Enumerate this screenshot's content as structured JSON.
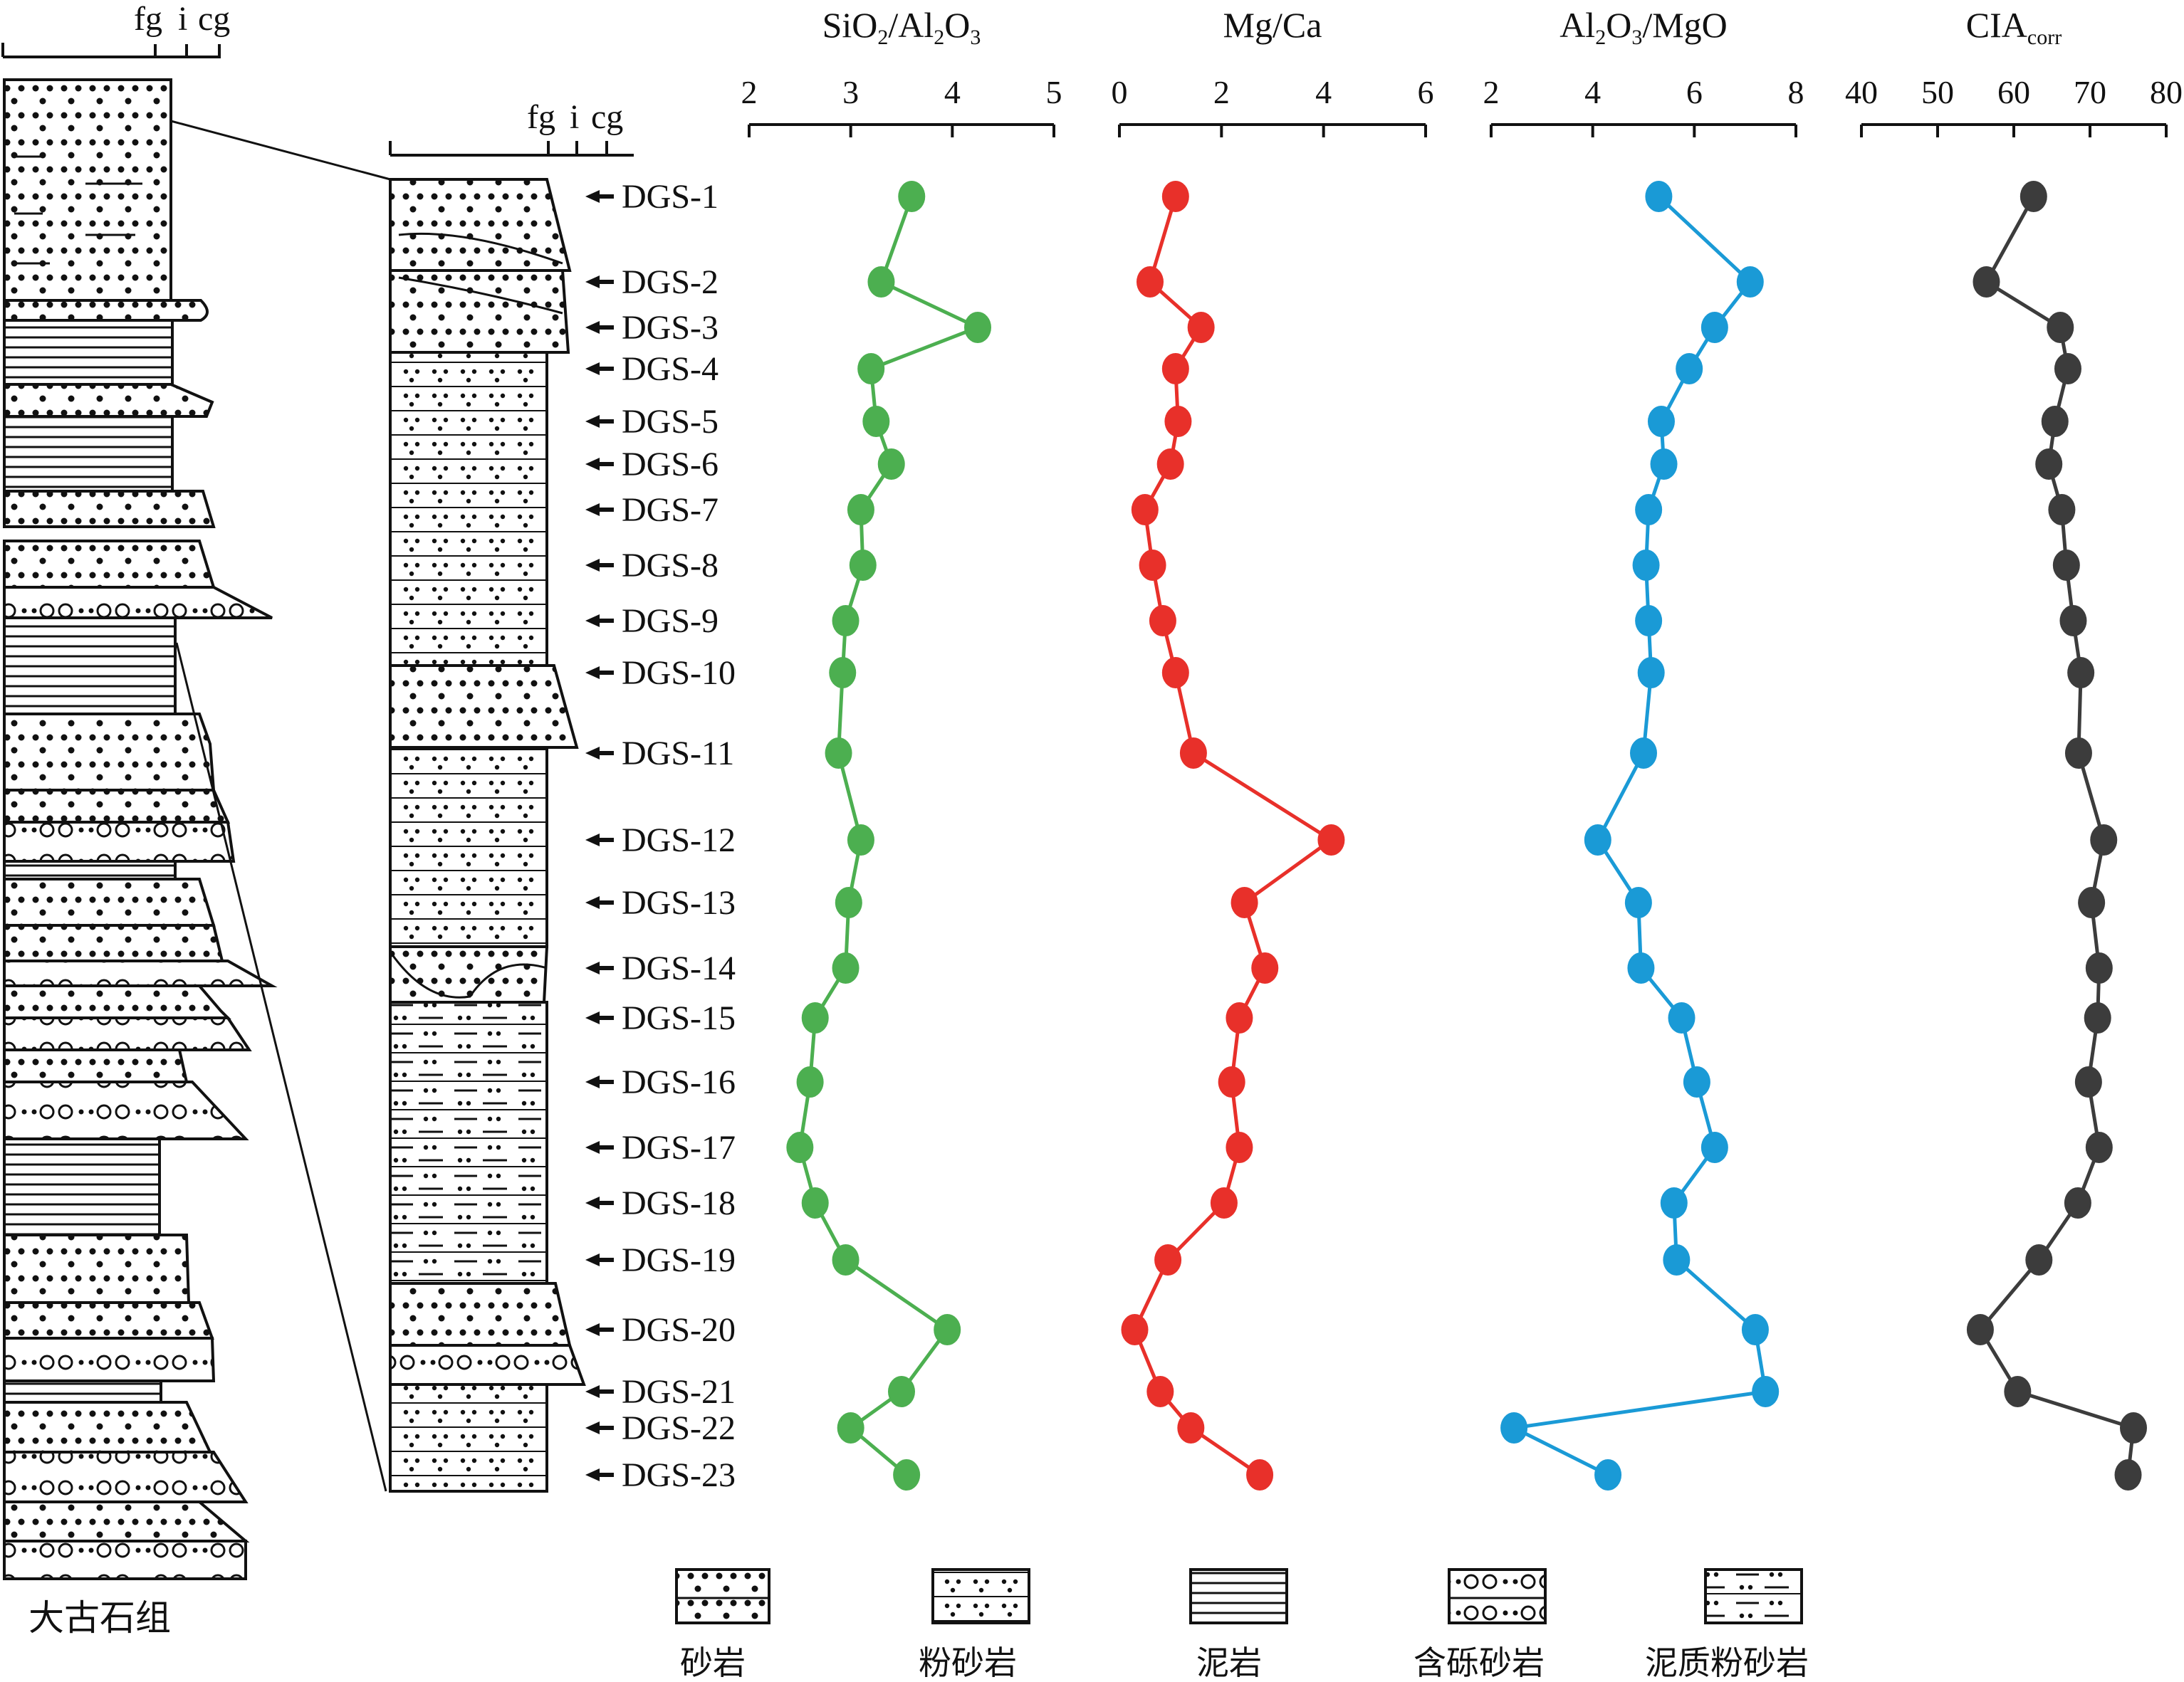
{
  "formation_name": "大古石组",
  "grain_scale": {
    "fg": "fg",
    "i": "i",
    "cg": "cg"
  },
  "legend": [
    "砂岩",
    "粉砂岩",
    "泥岩",
    "含砾砂岩",
    "泥质粉砂岩"
  ],
  "samples": [
    "DGS-1",
    "DGS-2",
    "DGS-3",
    "DGS-4",
    "DGS-5",
    "DGS-6",
    "DGS-7",
    "DGS-8",
    "DGS-9",
    "DGS-10",
    "DGS-11",
    "DGS-12",
    "DGS-13",
    "DGS-14",
    "DGS-15",
    "DGS-16",
    "DGS-17",
    "DGS-18",
    "DGS-19",
    "DGS-20",
    "DGS-21",
    "DGS-22",
    "DGS-23"
  ],
  "colors": {
    "SiO2/Al2O3": "#4caf50",
    "Mg/Ca": "#e8302a",
    "Al2O3/MgO": "#1a9ad6",
    "CIAcorr": "#3c3c3c"
  },
  "chart_data": [
    {
      "type": "line",
      "title": "SiO2/Al2O3",
      "title_main": "SiO",
      "title_sub1": "2",
      "title_mid": "/Al",
      "title_sub2": "2",
      "title_end": "O",
      "title_sub3": "3",
      "xlim": [
        2,
        5
      ],
      "ticks": [
        "2",
        "3",
        "4",
        "5"
      ],
      "values": [
        3.6,
        3.3,
        4.25,
        3.2,
        3.25,
        3.4,
        3.1,
        3.12,
        2.95,
        2.92,
        2.88,
        3.1,
        2.98,
        2.95,
        2.65,
        2.6,
        2.5,
        2.65,
        2.95,
        3.95,
        3.5,
        3.0,
        3.55
      ]
    },
    {
      "type": "line",
      "title": "Mg/Ca",
      "xlim": [
        0,
        6
      ],
      "ticks": [
        "0",
        "2",
        "4",
        "6"
      ],
      "values": [
        1.1,
        0.6,
        1.6,
        1.1,
        1.15,
        1.0,
        0.5,
        0.65,
        0.85,
        1.1,
        1.45,
        4.15,
        2.45,
        2.85,
        2.35,
        2.2,
        2.35,
        2.05,
        0.95,
        0.3,
        0.8,
        1.4,
        2.75
      ]
    },
    {
      "type": "line",
      "title": "Al2O3/MgO",
      "title_main": "Al",
      "title_sub1": "2",
      "title_mid": "O",
      "title_sub2": "3",
      "title_end": "/MgO",
      "xlim": [
        2,
        8
      ],
      "ticks": [
        "2",
        "4",
        "6",
        "8"
      ],
      "values": [
        5.3,
        7.1,
        6.4,
        5.9,
        5.35,
        5.4,
        5.1,
        5.05,
        5.1,
        5.15,
        5.0,
        4.1,
        4.9,
        4.95,
        5.75,
        6.05,
        6.4,
        5.6,
        5.65,
        7.2,
        7.4,
        2.45,
        4.3
      ]
    },
    {
      "type": "line",
      "title": "CIAcorr",
      "title_main": "CIA",
      "title_sub1": "corr",
      "xlim": [
        40,
        80
      ],
      "ticks": [
        "40",
        "50",
        "60",
        "70",
        "80"
      ],
      "values": [
        62.6,
        56.4,
        66.1,
        67.1,
        65.4,
        64.6,
        66.3,
        66.9,
        67.8,
        68.8,
        68.5,
        71.8,
        70.2,
        71.2,
        71.0,
        69.8,
        71.2,
        68.4,
        63.3,
        55.6,
        60.5,
        75.7,
        75.0
      ]
    }
  ]
}
